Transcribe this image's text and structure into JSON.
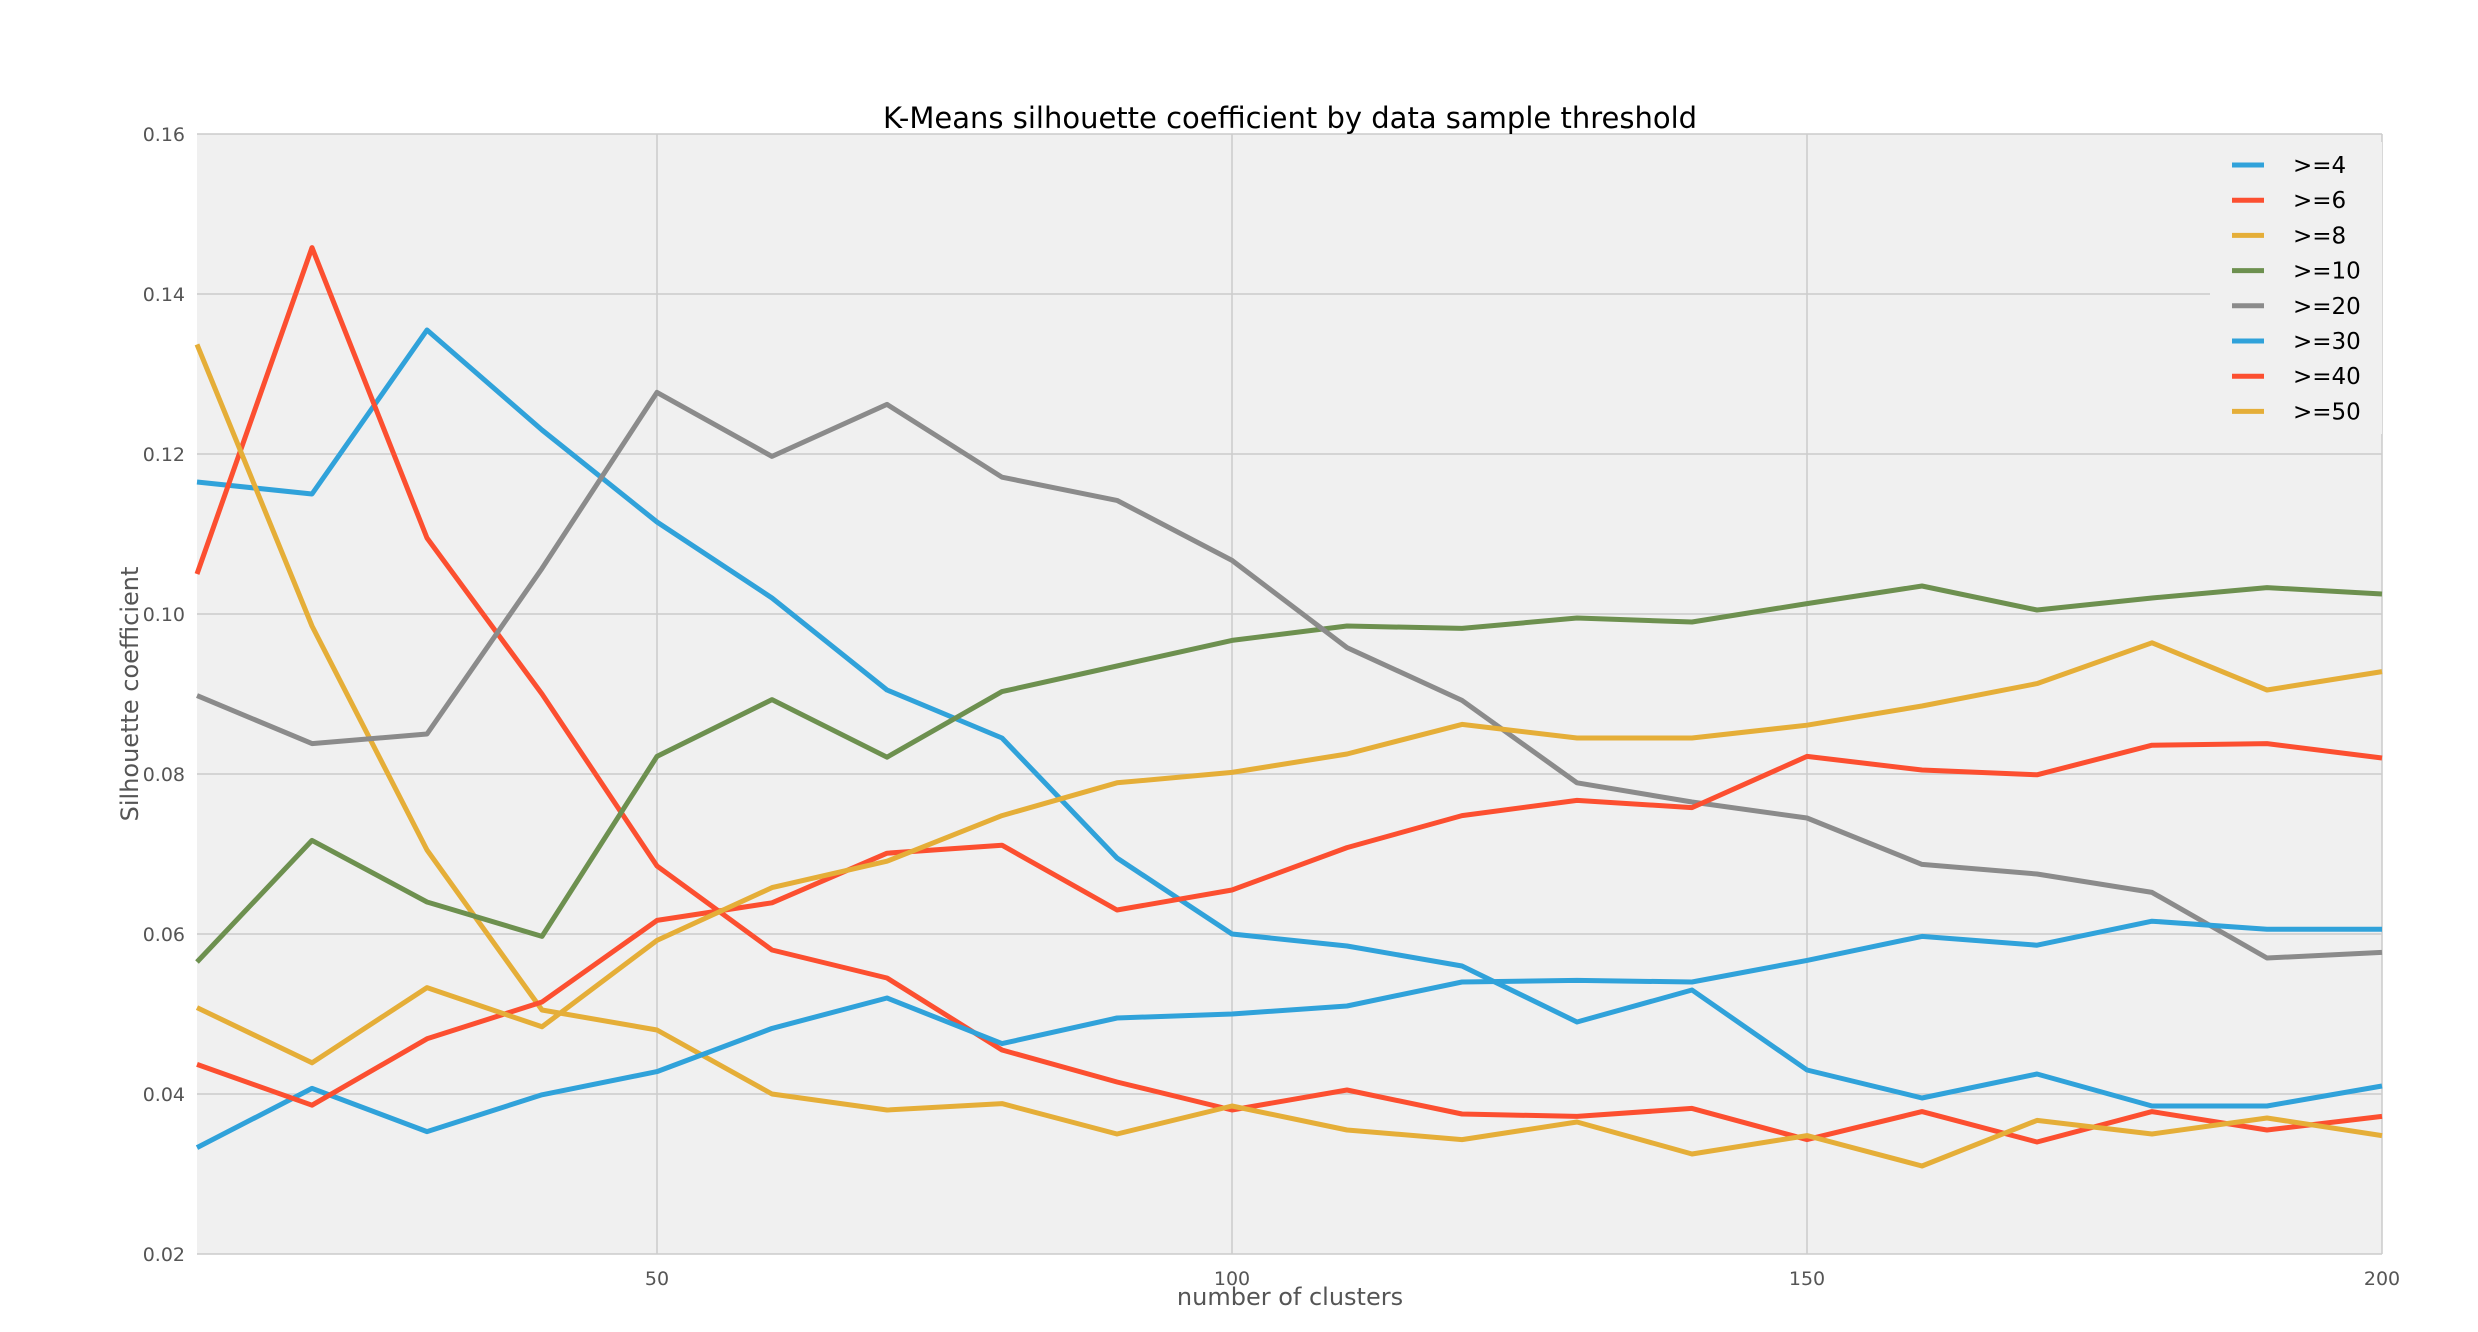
{
  "chart_data": {
    "type": "line",
    "title": "K-Means silhouette coefficient by data sample threshold",
    "xlabel": "number of clusters",
    "ylabel": "Silhouette coefficient",
    "xlim": [
      10,
      200
    ],
    "ylim": [
      0.02,
      0.16
    ],
    "xticks": [
      50,
      100,
      150,
      200
    ],
    "yticks": [
      0.02,
      0.04,
      0.06,
      0.08,
      0.1,
      0.12,
      0.14,
      0.16
    ],
    "ytick_labels": [
      "0.02",
      "0.04",
      "0.06",
      "0.08",
      "0.10",
      "0.12",
      "0.14",
      "0.16"
    ],
    "grid": true,
    "legend_position": "top-right",
    "x": [
      10,
      20,
      30,
      40,
      50,
      60,
      70,
      80,
      90,
      100,
      110,
      120,
      130,
      140,
      150,
      160,
      170,
      180,
      190,
      200
    ],
    "series": [
      {
        "name": ">=4",
        "color": "#30a2da",
        "values": [
          0.1165,
          0.115,
          0.1355,
          0.123,
          0.1115,
          0.102,
          0.0905,
          0.0845,
          0.0695,
          0.06,
          0.0585,
          0.056,
          0.049,
          0.053,
          0.043,
          0.0395,
          0.0425,
          0.0385,
          0.0385,
          0.041
        ]
      },
      {
        "name": ">=6",
        "color": "#fc4f30",
        "values": [
          0.105,
          0.1458,
          0.1095,
          0.09,
          0.0685,
          0.058,
          0.0545,
          0.0455,
          0.0415,
          0.038,
          0.0405,
          0.0375,
          0.0372,
          0.0382,
          0.0343,
          0.0378,
          0.034,
          0.0378,
          0.0355,
          0.0372
        ]
      },
      {
        "name": ">=8",
        "color": "#e5ae38",
        "values": [
          0.1337,
          0.0985,
          0.0705,
          0.0505,
          0.048,
          0.04,
          0.038,
          0.0388,
          0.035,
          0.0385,
          0.0355,
          0.0343,
          0.0365,
          0.0325,
          0.0348,
          0.031,
          0.0367,
          0.035,
          0.037,
          0.0348
        ]
      },
      {
        "name": ">=10",
        "color": "#6d904f",
        "values": [
          0.0565,
          0.0717,
          0.064,
          0.0597,
          0.0822,
          0.0893,
          0.0821,
          0.0903,
          0.0935,
          0.0967,
          0.0985,
          0.0982,
          0.0995,
          0.099,
          0.1013,
          0.1035,
          0.1005,
          0.102,
          0.1033,
          0.1025
        ]
      },
      {
        "name": ">=20",
        "color": "#8b8b8b",
        "values": [
          0.0898,
          0.0838,
          0.085,
          0.1057,
          0.1277,
          0.1197,
          0.1262,
          0.1171,
          0.1142,
          0.1067,
          0.0958,
          0.0892,
          0.0789,
          0.0765,
          0.0745,
          0.0687,
          0.0675,
          0.0652,
          0.057,
          0.0577
        ]
      },
      {
        "name": ">=30",
        "color": "#30a2da",
        "values": [
          0.0333,
          0.0407,
          0.0353,
          0.0399,
          0.0428,
          0.0482,
          0.052,
          0.0463,
          0.0495,
          0.05,
          0.051,
          0.054,
          0.0542,
          0.054,
          0.0567,
          0.0597,
          0.0586,
          0.0616,
          0.0606,
          0.0606
        ]
      },
      {
        "name": ">=40",
        "color": "#fc4f30",
        "values": [
          0.0437,
          0.0386,
          0.0469,
          0.0515,
          0.0617,
          0.0639,
          0.0701,
          0.0711,
          0.063,
          0.0655,
          0.0708,
          0.0748,
          0.0767,
          0.0758,
          0.0822,
          0.0805,
          0.0799,
          0.0836,
          0.0838,
          0.082
        ]
      },
      {
        "name": ">=50",
        "color": "#e5ae38",
        "values": [
          0.0508,
          0.0439,
          0.0533,
          0.0484,
          0.0592,
          0.0658,
          0.0691,
          0.0748,
          0.0789,
          0.0802,
          0.0825,
          0.0862,
          0.0845,
          0.0845,
          0.0861,
          0.0885,
          0.0913,
          0.0964,
          0.0905,
          0.0928
        ]
      }
    ]
  }
}
